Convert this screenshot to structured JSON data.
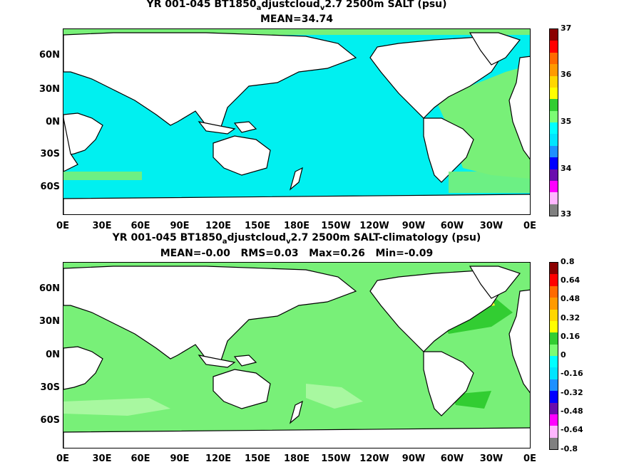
{
  "map1": {
    "title_line1_a": "YR 001-045 BT1850",
    "title_sub_a": "a",
    "title_line1_b": "djustcloud",
    "title_sub_b": "v",
    "title_line1_c": "2.7 2500m SALT (psu)",
    "title_line2": "MEAN=34.74",
    "colorbar_ticks": [
      "37",
      "36",
      "35",
      "34",
      "33"
    ],
    "colorbar_colors": [
      "#8b0000",
      "#ff0000",
      "#ff6a00",
      "#ff9a00",
      "#ffd700",
      "#ffff00",
      "#32cd32",
      "#7cfc74",
      "#00ffff",
      "#00e5ff",
      "#1e90ff",
      "#0000ff",
      "#6a0dad",
      "#ff00ff",
      "#ffb6ff",
      "#808080"
    ]
  },
  "map2": {
    "title_line1_a": "YR 001-045 BT1850",
    "title_sub_a": "a",
    "title_line1_b": "djustcloud",
    "title_sub_b": "v",
    "title_line1_c": "2.7 2500m SALT-climatology (psu)",
    "title_line2": "MEAN=-0.00   RMS=0.03   Max=0.26   Min=-0.09",
    "colorbar_ticks": [
      "0.8",
      "0.64",
      "0.48",
      "0.32",
      "0.16",
      "0",
      "-0.16",
      "-0.32",
      "-0.48",
      "-0.64",
      "-0.8"
    ],
    "colorbar_colors": [
      "#8b0000",
      "#ff0000",
      "#ff6a00",
      "#ff9a00",
      "#ffd700",
      "#ffff00",
      "#32cd32",
      "#7cfc74",
      "#00ffff",
      "#00e5ff",
      "#1e90ff",
      "#0000ff",
      "#6a0dad",
      "#ff00ff",
      "#ffb6ff",
      "#808080"
    ]
  },
  "lat_ticks": [
    "60N",
    "30N",
    "0N",
    "30S",
    "60S"
  ],
  "lon_ticks": [
    "0E",
    "30E",
    "60E",
    "90E",
    "120E",
    "150E",
    "180E",
    "150W",
    "120W",
    "90W",
    "60W",
    "30W",
    "0E"
  ],
  "colors": {
    "ocean_main": "#00f0f0",
    "ocean_light": "#7cf07c",
    "ocean_green": "#78f078",
    "land": "#ffffff",
    "coast": "#000000"
  }
}
